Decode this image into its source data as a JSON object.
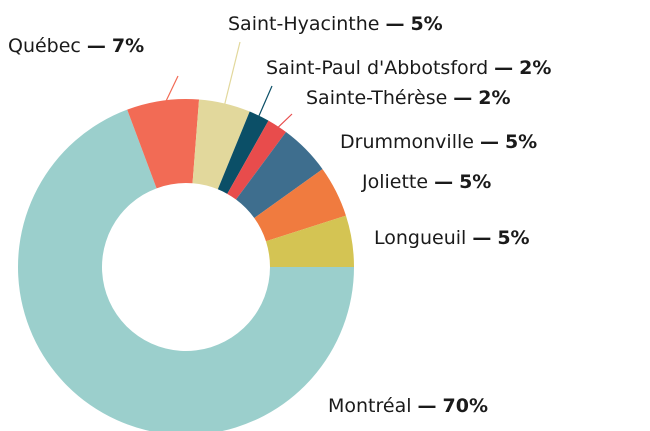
{
  "chart_data": {
    "type": "donut",
    "categories": [
      "Montréal",
      "Québec",
      "Saint-Hyacinthe",
      "Saint-Paul d'Abbotsford",
      "Sainte-Thérèse",
      "Drummonville",
      "Joliette",
      "Longueuil"
    ],
    "values": [
      70,
      7,
      5,
      2,
      2,
      5,
      5,
      5
    ],
    "value_labels": [
      "70%",
      "7%",
      "5%",
      "2%",
      "2%",
      "5%",
      "5%",
      "5%"
    ],
    "separator": "—",
    "colors": [
      "#9bcfcc",
      "#f26b55",
      "#e2d89c",
      "#0b4f67",
      "#e84c4c",
      "#3e6e8e",
      "#f07b3f",
      "#d4c453"
    ]
  }
}
